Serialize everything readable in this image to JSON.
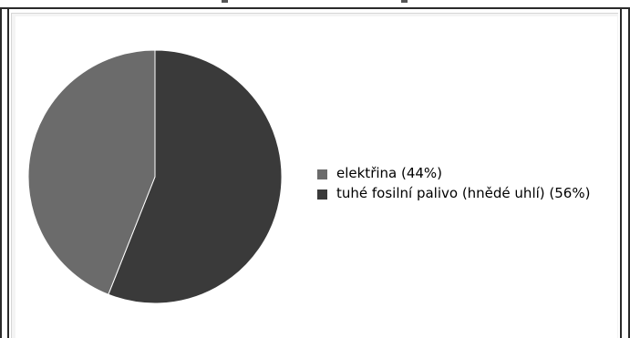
{
  "colors": {
    "background": "#ffffff",
    "frame": "#2a2a2a",
    "panel": "#f4f4f4"
  },
  "chart_data": {
    "type": "pie",
    "title": "",
    "slices": [
      {
        "label": "elektřina (44%)",
        "value": 44,
        "color": "#6b6b6b"
      },
      {
        "label": "tuhé fosilní palivo (hnědé uhlí) (56%)",
        "value": 56,
        "color": "#3a3a3a"
      }
    ],
    "start_angle_deg": 0,
    "direction": "clockwise",
    "legend_position": "right"
  }
}
